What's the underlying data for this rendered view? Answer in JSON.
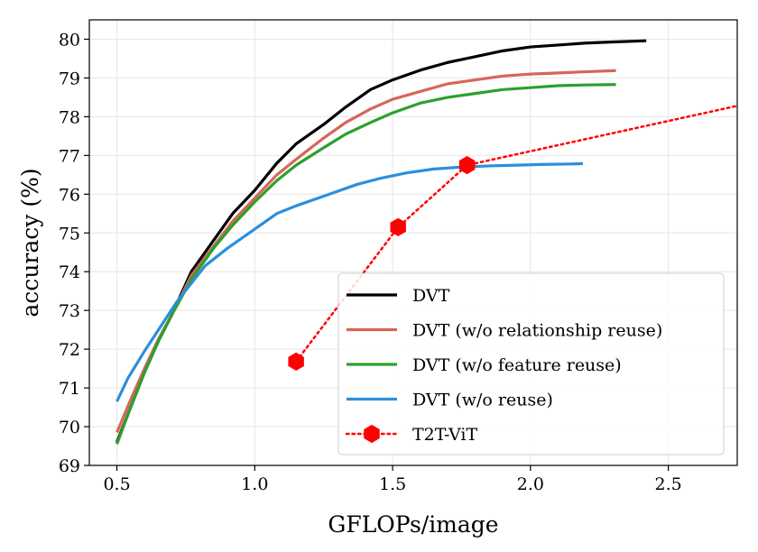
{
  "chart_data": {
    "type": "line",
    "title": "",
    "xlabel": "GFLOPs/image",
    "ylabel": "accuracy (%)",
    "xlim": [
      0.4,
      2.75
    ],
    "ylim": [
      69,
      80.5
    ],
    "grid": true,
    "legend_position": "bottom-right",
    "xticks": [
      0.5,
      1.0,
      1.5,
      2.0,
      2.5
    ],
    "xtick_labels": [
      "0.5",
      "1.0",
      "1.5",
      "2.0",
      "2.5"
    ],
    "yticks": [
      69,
      70,
      71,
      72,
      73,
      74,
      75,
      76,
      77,
      78,
      79,
      80
    ],
    "ytick_labels": [
      "69",
      "70",
      "71",
      "72",
      "73",
      "74",
      "75",
      "76",
      "77",
      "78",
      "79",
      "80"
    ],
    "series": [
      {
        "name": "DVT",
        "color": "#000000",
        "style": "solid",
        "marker": "none",
        "x": [
          0.5,
          0.55,
          0.6,
          0.65,
          0.7,
          0.77,
          0.85,
          0.92,
          1.0,
          1.08,
          1.15,
          1.25,
          1.33,
          1.42,
          1.5,
          1.6,
          1.7,
          1.8,
          1.9,
          2.0,
          2.1,
          2.2,
          2.3,
          2.42
        ],
        "y": [
          69.6,
          70.5,
          71.4,
          72.2,
          72.9,
          74.0,
          74.8,
          75.5,
          76.1,
          76.8,
          77.3,
          77.8,
          78.25,
          78.7,
          78.95,
          79.2,
          79.4,
          79.55,
          79.7,
          79.8,
          79.85,
          79.9,
          79.93,
          79.96
        ]
      },
      {
        "name": "DVT (w/o relationship reuse)",
        "color": "#d6665a",
        "style": "solid",
        "marker": "none",
        "x": [
          0.5,
          0.55,
          0.6,
          0.65,
          0.7,
          0.77,
          0.85,
          0.92,
          1.0,
          1.08,
          1.15,
          1.25,
          1.33,
          1.42,
          1.5,
          1.6,
          1.7,
          1.8,
          1.9,
          2.0,
          2.1,
          2.2,
          2.31
        ],
        "y": [
          69.85,
          70.7,
          71.5,
          72.25,
          72.9,
          73.9,
          74.65,
          75.3,
          75.9,
          76.5,
          76.9,
          77.45,
          77.85,
          78.2,
          78.45,
          78.65,
          78.85,
          78.95,
          79.05,
          79.1,
          79.13,
          79.16,
          79.19
        ]
      },
      {
        "name": "DVT (w/o feature reuse)",
        "color": "#2ca02c",
        "style": "solid",
        "marker": "none",
        "x": [
          0.5,
          0.55,
          0.6,
          0.65,
          0.7,
          0.77,
          0.85,
          0.92,
          1.0,
          1.08,
          1.15,
          1.25,
          1.33,
          1.42,
          1.5,
          1.6,
          1.7,
          1.8,
          1.9,
          2.0,
          2.1,
          2.2,
          2.31
        ],
        "y": [
          69.55,
          70.5,
          71.4,
          72.2,
          72.9,
          73.8,
          74.6,
          75.2,
          75.8,
          76.35,
          76.75,
          77.2,
          77.55,
          77.85,
          78.1,
          78.35,
          78.5,
          78.6,
          78.7,
          78.75,
          78.8,
          78.82,
          78.83
        ]
      },
      {
        "name": "DVT (w/o reuse)",
        "color": "#2b8fdc",
        "style": "solid",
        "marker": "none",
        "x": [
          0.5,
          0.54,
          0.6,
          0.66,
          0.72,
          0.82,
          0.9,
          0.97,
          1.03,
          1.08,
          1.15,
          1.25,
          1.37,
          1.45,
          1.55,
          1.65,
          1.75,
          1.85,
          1.95,
          2.05,
          2.15,
          2.19
        ],
        "y": [
          70.65,
          71.25,
          71.95,
          72.6,
          73.25,
          74.15,
          74.6,
          74.95,
          75.25,
          75.5,
          75.7,
          75.95,
          76.25,
          76.4,
          76.55,
          76.65,
          76.7,
          76.73,
          76.75,
          76.77,
          76.78,
          76.79
        ]
      },
      {
        "name": "T2T-ViT",
        "color": "#ff0000",
        "style": "dotted",
        "marker": "hexagon",
        "x": [
          1.15,
          1.52,
          1.77,
          2.75
        ],
        "y": [
          71.68,
          75.15,
          76.75,
          78.28
        ],
        "marker_count": 3
      }
    ]
  }
}
